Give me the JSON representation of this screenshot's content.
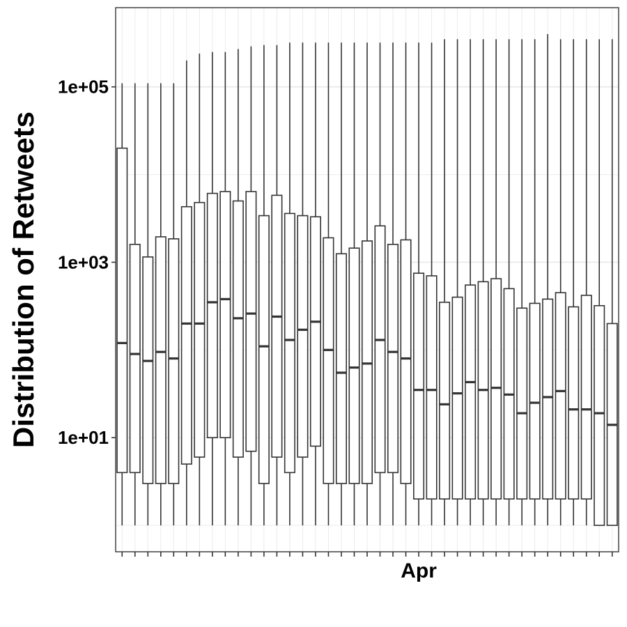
{
  "chart_data": {
    "type": "box",
    "title": "",
    "xlabel": "",
    "ylabel": "Distribution of Retweets",
    "y_scale": "log10",
    "ylim": [
      0.5,
      800000
    ],
    "y_ticks": [
      {
        "value": 10,
        "label": "1e+01"
      },
      {
        "value": 1000,
        "label": "1e+03"
      },
      {
        "value": 100000,
        "label": "1e+05"
      }
    ],
    "x_tick_labels": [
      {
        "index": 23,
        "label": "Apr"
      }
    ],
    "n_boxes": 39,
    "grid": true,
    "colors": {
      "box_stroke": "#333333",
      "box_fill": "#ffffff",
      "grid": "#ebebeb",
      "panel_border": "#333333"
    },
    "boxes": [
      {
        "whisker_low": 1,
        "q1": 4,
        "median": 120,
        "q3": 20000,
        "whisker_high": 110000
      },
      {
        "whisker_low": 1,
        "q1": 4,
        "median": 90,
        "q3": 1600,
        "whisker_high": 110000
      },
      {
        "whisker_low": 1,
        "q1": 3,
        "median": 75,
        "q3": 1150,
        "whisker_high": 110000
      },
      {
        "whisker_low": 1,
        "q1": 3,
        "median": 95,
        "q3": 1950,
        "whisker_high": 110000
      },
      {
        "whisker_low": 1,
        "q1": 3,
        "median": 80,
        "q3": 1850,
        "whisker_high": 110000
      },
      {
        "whisker_low": 1,
        "q1": 5,
        "median": 200,
        "q3": 4300,
        "whisker_high": 200000
      },
      {
        "whisker_low": 1,
        "q1": 6,
        "median": 200,
        "q3": 4800,
        "whisker_high": 240000
      },
      {
        "whisker_low": 1,
        "q1": 10,
        "median": 350,
        "q3": 6100,
        "whisker_high": 250000
      },
      {
        "whisker_low": 1,
        "q1": 10,
        "median": 380,
        "q3": 6400,
        "whisker_high": 250000
      },
      {
        "whisker_low": 1,
        "q1": 6,
        "median": 230,
        "q3": 5000,
        "whisker_high": 270000
      },
      {
        "whisker_low": 1,
        "q1": 7,
        "median": 260,
        "q3": 6400,
        "whisker_high": 290000
      },
      {
        "whisker_low": 1,
        "q1": 3,
        "median": 110,
        "q3": 3400,
        "whisker_high": 300000
      },
      {
        "whisker_low": 1,
        "q1": 6,
        "median": 240,
        "q3": 5800,
        "whisker_high": 300000
      },
      {
        "whisker_low": 1,
        "q1": 4,
        "median": 130,
        "q3": 3600,
        "whisker_high": 320000
      },
      {
        "whisker_low": 1,
        "q1": 6,
        "median": 170,
        "q3": 3400,
        "whisker_high": 320000
      },
      {
        "whisker_low": 1,
        "q1": 8,
        "median": 210,
        "q3": 3300,
        "whisker_high": 320000
      },
      {
        "whisker_low": 1,
        "q1": 3,
        "median": 100,
        "q3": 1900,
        "whisker_high": 320000
      },
      {
        "whisker_low": 1,
        "q1": 3,
        "median": 55,
        "q3": 1250,
        "whisker_high": 320000
      },
      {
        "whisker_low": 1,
        "q1": 3,
        "median": 63,
        "q3": 1450,
        "whisker_high": 320000
      },
      {
        "whisker_low": 1,
        "q1": 3,
        "median": 70,
        "q3": 1750,
        "whisker_high": 320000
      },
      {
        "whisker_low": 1,
        "q1": 4,
        "median": 130,
        "q3": 2600,
        "whisker_high": 320000
      },
      {
        "whisker_low": 1,
        "q1": 4,
        "median": 95,
        "q3": 1600,
        "whisker_high": 320000
      },
      {
        "whisker_low": 1,
        "q1": 3,
        "median": 80,
        "q3": 1800,
        "whisker_high": 320000
      },
      {
        "whisker_low": 1,
        "q1": 2,
        "median": 35,
        "q3": 750,
        "whisker_high": 320000
      },
      {
        "whisker_low": 1,
        "q1": 2,
        "median": 35,
        "q3": 700,
        "whisker_high": 320000
      },
      {
        "whisker_low": 1,
        "q1": 2,
        "median": 24,
        "q3": 350,
        "whisker_high": 350000
      },
      {
        "whisker_low": 1,
        "q1": 2,
        "median": 32,
        "q3": 400,
        "whisker_high": 350000
      },
      {
        "whisker_low": 1,
        "q1": 2,
        "median": 43,
        "q3": 550,
        "whisker_high": 350000
      },
      {
        "whisker_low": 1,
        "q1": 2,
        "median": 35,
        "q3": 600,
        "whisker_high": 350000
      },
      {
        "whisker_low": 1,
        "q1": 2,
        "median": 37,
        "q3": 650,
        "whisker_high": 350000
      },
      {
        "whisker_low": 1,
        "q1": 2,
        "median": 31,
        "q3": 500,
        "whisker_high": 350000
      },
      {
        "whisker_low": 1,
        "q1": 2,
        "median": 19,
        "q3": 300,
        "whisker_high": 350000
      },
      {
        "whisker_low": 1,
        "q1": 2,
        "median": 25,
        "q3": 340,
        "whisker_high": 350000
      },
      {
        "whisker_low": 1,
        "q1": 2,
        "median": 29,
        "q3": 380,
        "whisker_high": 400000
      },
      {
        "whisker_low": 1,
        "q1": 2,
        "median": 34,
        "q3": 450,
        "whisker_high": 350000
      },
      {
        "whisker_low": 1,
        "q1": 2,
        "median": 21,
        "q3": 310,
        "whisker_high": 350000
      },
      {
        "whisker_low": 1,
        "q1": 2,
        "median": 21,
        "q3": 420,
        "whisker_high": 350000
      },
      {
        "whisker_low": 1,
        "q1": 1,
        "median": 19,
        "q3": 320,
        "whisker_high": 350000
      },
      {
        "whisker_low": 1,
        "q1": 1,
        "median": 14,
        "q3": 200,
        "whisker_high": 350000
      }
    ]
  }
}
